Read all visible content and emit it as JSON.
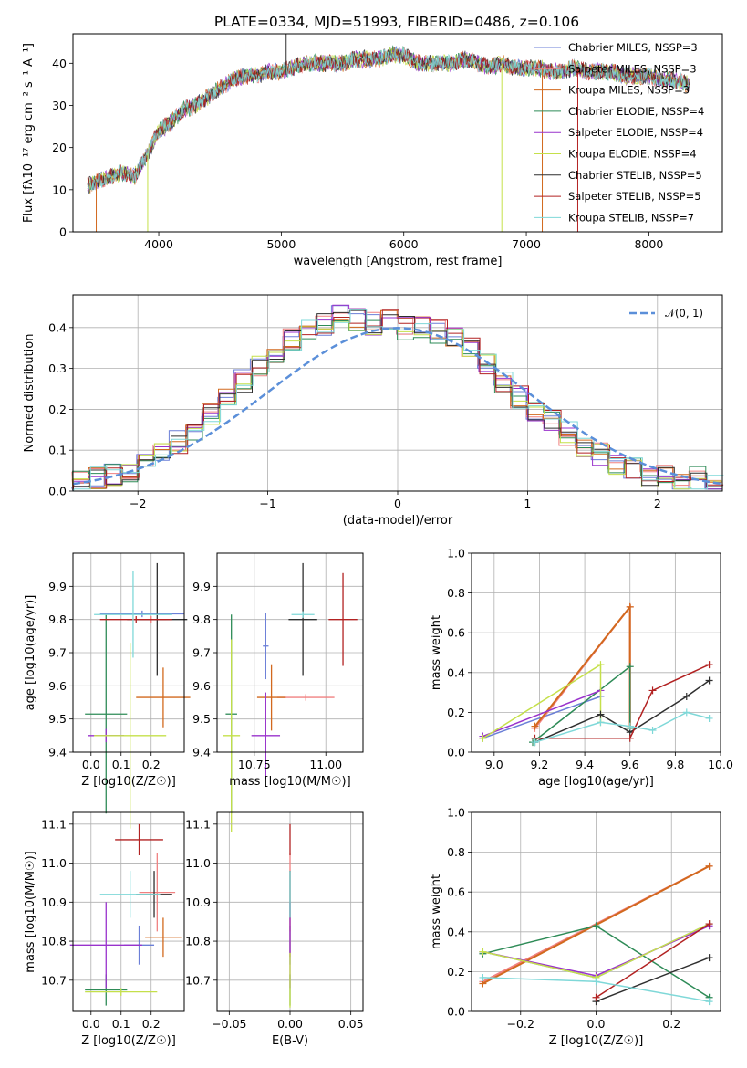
{
  "figure": {
    "title": "PLATE=0334, MJD=51993, FIBERID=0486, z=0.106"
  },
  "colors": {
    "series": [
      "#6b7fd7",
      "#f08080",
      "#d2691e",
      "#2e8b57",
      "#9932cc",
      "#c5e04a",
      "#2f2f2f",
      "#b22222",
      "#7fd8d8"
    ],
    "gaussian": "#5b8fd9",
    "grid": "#b0b0b0"
  },
  "chart_data": [
    {
      "type": "line",
      "title": "PLATE=0334, MJD=51993, FIBERID=0486, z=0.106",
      "xlabel": "wavelength [Angstrom, rest frame]",
      "ylabel": "Flux [fλ10⁻¹⁷ erg cm⁻² s⁻¹ A⁻¹]",
      "xlim": [
        3300,
        8600
      ],
      "ylim": [
        0,
        47
      ],
      "xticks": [
        "4000",
        "5000",
        "6000",
        "7000",
        "8000"
      ],
      "yticks": [
        "0",
        "10",
        "20",
        "30",
        "40"
      ],
      "grid": false,
      "legend": "right",
      "legend_entries": [
        "Chabrier MILES, NSSP=3",
        "Salpeter MILES, NSSP=3",
        "Kroupa MILES, NSSP=3",
        "Chabrier ELODIE, NSSP=4",
        "Salpeter ELODIE, NSSP=4",
        "Kroupa ELODIE, NSSP=4",
        "Chabrier STELIB, NSSP=5",
        "Salpeter STELIB, NSSP=5",
        "Kroupa STELIB, NSSP=7"
      ],
      "spectrum": {
        "x": [
          3420,
          3500,
          3600,
          3700,
          3800,
          3900,
          4000,
          4100,
          4200,
          4300,
          4400,
          4500,
          4600,
          4700,
          4800,
          4900,
          5000,
          5100,
          5200,
          5300,
          5400,
          5500,
          5600,
          5700,
          5800,
          5900,
          6000,
          6100,
          6200,
          6300,
          6400,
          6500,
          6600,
          6700,
          6800,
          6900,
          7000,
          7100,
          7200,
          7300,
          7400,
          7500,
          7600,
          7700,
          7800,
          7900,
          8000,
          8100,
          8200,
          8330
        ],
        "y": [
          11,
          12,
          13,
          14,
          13,
          18,
          24,
          26,
          29,
          30,
          32,
          34,
          36,
          37,
          37,
          38,
          38,
          39,
          40,
          40,
          40,
          40,
          41,
          41,
          41,
          42,
          42,
          40,
          40,
          40,
          40,
          41,
          40,
          39,
          40,
          39,
          39,
          39,
          38,
          38,
          39,
          38,
          38,
          38,
          37,
          37,
          37,
          36,
          36,
          35
        ]
      }
    },
    {
      "type": "line",
      "xlabel": "(data-model)/error",
      "ylabel": "Normed distribution",
      "xlim": [
        -2.5,
        2.5
      ],
      "ylim": [
        0,
        0.48
      ],
      "xticks": [
        "−2",
        "−1",
        "0",
        "1",
        "2"
      ],
      "yticks": [
        "0.0",
        "0.1",
        "0.2",
        "0.3",
        "0.4"
      ],
      "grid": true,
      "legend": "top-right",
      "legend_entries": [
        "𝒩(0, 1)"
      ],
      "series": [
        {
          "bins": [
            -2.5,
            2.5
          ],
          "values": [
            0.02,
            0.03,
            0.04,
            0.05,
            0.08,
            0.09,
            0.12,
            0.15,
            0.19,
            0.23,
            0.27,
            0.31,
            0.34,
            0.37,
            0.39,
            0.41,
            0.43,
            0.42,
            0.41,
            0.42,
            0.4,
            0.4,
            0.39,
            0.37,
            0.35,
            0.31,
            0.27,
            0.23,
            0.2,
            0.17,
            0.14,
            0.11,
            0.09,
            0.07,
            0.06,
            0.04,
            0.04,
            0.03,
            0.03,
            0.02
          ]
        }
      ]
    },
    {
      "type": "scatter",
      "xlabel": "Z [log10(Z/Z☉)]",
      "ylabel": "age  [log10(age/yr)]",
      "xlim": [
        -0.06,
        0.31
      ],
      "ylim": [
        9.4,
        10.0
      ],
      "xticks": [
        "0.0",
        "0.1",
        "0.2"
      ],
      "yticks": [
        "9.4",
        "9.5",
        "9.6",
        "9.7",
        "9.8",
        "9.9"
      ],
      "grid": true,
      "points": [
        {
          "x": 0.17,
          "y": 9.817,
          "xerr": 0.14,
          "yerr": 0.01,
          "series": 0
        },
        {
          "x": 0.2,
          "y": 9.8,
          "xerr": 0.05,
          "yerr": 0.01,
          "series": 1
        },
        {
          "x": 0.24,
          "y": 9.565,
          "xerr": 0.09,
          "yerr": 0.09,
          "series": 2
        },
        {
          "x": 0.05,
          "y": 9.515,
          "xerr": 0.07,
          "yerr": 0.3,
          "series": 3
        },
        {
          "x": 0.05,
          "y": 9.45,
          "xerr": 0.06,
          "yerr": 0.02,
          "series": 4
        },
        {
          "x": 0.13,
          "y": 9.45,
          "xerr": 0.12,
          "yerr": 0.28,
          "series": 5
        },
        {
          "x": 0.22,
          "y": 9.8,
          "xerr": 0.1,
          "yerr": 0.17,
          "series": 6
        },
        {
          "x": 0.15,
          "y": 9.8,
          "xerr": 0.12,
          "yerr": 0.01,
          "series": 7
        },
        {
          "x": 0.14,
          "y": 9.815,
          "xerr": 0.13,
          "yerr": 0.13,
          "series": 8
        }
      ]
    },
    {
      "type": "scatter",
      "xlabel": "mass [log10(M/M☉)]",
      "ylabel": "",
      "xlim": [
        10.62,
        11.13
      ],
      "ylim": [
        9.4,
        10.0
      ],
      "xticks": [
        "10.75",
        "11.00"
      ],
      "yticks": [
        "9.4",
        "9.5",
        "9.6",
        "9.7",
        "9.8",
        "9.9"
      ],
      "grid": true,
      "points": [
        {
          "x": 10.79,
          "y": 9.72,
          "xerr": 0.01,
          "yerr": 0.1,
          "series": 0
        },
        {
          "x": 10.93,
          "y": 9.565,
          "xerr": 0.1,
          "yerr": 0.01,
          "series": 1
        },
        {
          "x": 10.81,
          "y": 9.565,
          "xerr": 0.05,
          "yerr": 0.1,
          "series": 2
        },
        {
          "x": 10.67,
          "y": 9.515,
          "xerr": 0.02,
          "yerr": 0.3,
          "series": 3
        },
        {
          "x": 10.79,
          "y": 9.45,
          "xerr": 0.05,
          "yerr": 0.13,
          "series": 4
        },
        {
          "x": 10.67,
          "y": 9.45,
          "xerr": 0.03,
          "yerr": 0.29,
          "series": 5
        },
        {
          "x": 10.92,
          "y": 9.8,
          "xerr": 0.05,
          "yerr": 0.17,
          "series": 6
        },
        {
          "x": 11.06,
          "y": 9.8,
          "xerr": 0.05,
          "yerr": 0.14,
          "series": 7
        },
        {
          "x": 10.92,
          "y": 9.815,
          "xerr": 0.04,
          "yerr": 0.01,
          "series": 8
        }
      ]
    },
    {
      "type": "line",
      "xlabel": "age  [log10(age/yr)]",
      "ylabel": "mass weight",
      "xlim": [
        8.9,
        10.0
      ],
      "ylim": [
        0.0,
        1.0
      ],
      "xticks": [
        "9.0",
        "9.2",
        "9.4",
        "9.6",
        "9.8",
        "10.0"
      ],
      "yticks": [
        "0.0",
        "0.2",
        "0.4",
        "0.6",
        "0.8",
        "1.0"
      ],
      "grid": true,
      "series": [
        {
          "x": [
            8.95,
            9.47
          ],
          "y": [
            0.07,
            0.28
          ]
        },
        {
          "x": [
            9.18,
            9.6,
            9.6
          ],
          "y": [
            0.12,
            0.73,
            0.13
          ]
        },
        {
          "x": [
            9.18,
            9.6,
            9.6
          ],
          "y": [
            0.13,
            0.73,
            0.12
          ]
        },
        {
          "x": [
            9.17,
            9.6,
            9.6
          ],
          "y": [
            0.05,
            0.43,
            0.12
          ]
        },
        {
          "x": [
            8.95,
            9.47
          ],
          "y": [
            0.08,
            0.31
          ]
        },
        {
          "x": [
            8.95,
            9.47,
            9.47
          ],
          "y": [
            0.07,
            0.44,
            0.15
          ]
        },
        {
          "x": [
            9.18,
            9.47,
            9.6,
            9.85,
            9.95
          ],
          "y": [
            0.05,
            0.19,
            0.1,
            0.28,
            0.36
          ]
        },
        {
          "x": [
            9.18,
            9.6,
            9.7,
            9.95
          ],
          "y": [
            0.07,
            0.07,
            0.31,
            0.44
          ]
        },
        {
          "x": [
            9.18,
            9.47,
            9.6,
            9.7,
            9.85,
            9.95
          ],
          "y": [
            0.05,
            0.15,
            0.13,
            0.11,
            0.2,
            0.17
          ]
        }
      ]
    },
    {
      "type": "scatter",
      "xlabel": "Z [log10(Z/Z☉)]",
      "ylabel": "mass [log10(M/M☉)]",
      "xlim": [
        -0.06,
        0.31
      ],
      "ylim": [
        10.62,
        11.13
      ],
      "xticks": [
        "0.0",
        "0.1",
        "0.2"
      ],
      "yticks": [
        "10.7",
        "10.8",
        "10.9",
        "11.0",
        "11.1"
      ],
      "grid": true,
      "points": [
        {
          "x": 0.16,
          "y": 10.79,
          "xerr": 0.05,
          "yerr": 0.05,
          "series": 0
        },
        {
          "x": 0.22,
          "y": 10.925,
          "xerr": 0.06,
          "yerr": 0.1,
          "series": 1
        },
        {
          "x": 0.24,
          "y": 10.81,
          "xerr": 0.06,
          "yerr": 0.05,
          "series": 2
        },
        {
          "x": 0.05,
          "y": 10.675,
          "xerr": 0.07,
          "yerr": 0.04,
          "series": 3
        },
        {
          "x": 0.05,
          "y": 10.79,
          "xerr": 0.12,
          "yerr": 0.11,
          "series": 4
        },
        {
          "x": 0.1,
          "y": 10.67,
          "xerr": 0.12,
          "yerr": 0.01,
          "series": 5
        },
        {
          "x": 0.21,
          "y": 10.92,
          "xerr": 0.06,
          "yerr": 0.06,
          "series": 6
        },
        {
          "x": 0.16,
          "y": 11.06,
          "xerr": 0.08,
          "yerr": 0.04,
          "series": 7
        },
        {
          "x": 0.13,
          "y": 10.92,
          "xerr": 0.1,
          "yerr": 0.06,
          "series": 8
        }
      ]
    },
    {
      "type": "scatter",
      "xlabel": "E(B-V)",
      "ylabel": "",
      "xlim": [
        -0.06,
        0.06
      ],
      "ylim": [
        10.62,
        11.13
      ],
      "xticks": [
        "−0.05",
        "0.00",
        "0.05"
      ],
      "yticks": [
        "10.7",
        "10.8",
        "10.9",
        "11.0",
        "11.1"
      ],
      "grid": true,
      "points": [
        {
          "x": 0,
          "y": 10.79,
          "xerr": 0,
          "yerr": 0.05,
          "series": 0
        },
        {
          "x": 0,
          "y": 10.925,
          "xerr": 0,
          "yerr": 0.1,
          "series": 1
        },
        {
          "x": 0,
          "y": 10.81,
          "xerr": 0,
          "yerr": 0.05,
          "series": 2
        },
        {
          "x": 0,
          "y": 10.675,
          "xerr": 0,
          "yerr": 0.04,
          "series": 3
        },
        {
          "x": 0,
          "y": 10.79,
          "xerr": 0,
          "yerr": 0.11,
          "series": 4
        },
        {
          "x": 0,
          "y": 10.7,
          "xerr": 0,
          "yerr": 0.07,
          "series": 5
        },
        {
          "x": 0,
          "y": 10.92,
          "xerr": 0,
          "yerr": 0.06,
          "series": 6
        },
        {
          "x": 0,
          "y": 11.06,
          "xerr": 0,
          "yerr": 0.04,
          "series": 7
        },
        {
          "x": 0,
          "y": 10.92,
          "xerr": 0,
          "yerr": 0.06,
          "series": 8
        }
      ]
    },
    {
      "type": "line",
      "xlabel": "Z [log10(Z/Z☉)]",
      "ylabel": "mass weight",
      "xlim": [
        -0.33,
        0.33
      ],
      "ylim": [
        0.0,
        1.0
      ],
      "xticks": [
        "−0.2",
        "0.0",
        "0.2"
      ],
      "yticks": [
        "0.0",
        "0.2",
        "0.4",
        "0.6",
        "0.8",
        "1.0"
      ],
      "grid": true,
      "series": [
        {
          "x": [
            -0.3,
            0.0,
            0.3
          ],
          "y": [
            0.3,
            0.17,
            0.44
          ]
        },
        {
          "x": [
            -0.3,
            0.3
          ],
          "y": [
            0.15,
            0.73
          ]
        },
        {
          "x": [
            -0.3,
            0.3
          ],
          "y": [
            0.14,
            0.73
          ]
        },
        {
          "x": [
            -0.3,
            0.0,
            0.3
          ],
          "y": [
            0.29,
            0.43,
            0.07
          ]
        },
        {
          "x": [
            -0.3,
            0.0,
            0.3
          ],
          "y": [
            0.3,
            0.18,
            0.43
          ]
        },
        {
          "x": [
            -0.3,
            0.0,
            0.3
          ],
          "y": [
            0.3,
            0.17,
            0.44
          ]
        },
        {
          "x": [
            0.0,
            0.3
          ],
          "y": [
            0.05,
            0.27
          ]
        },
        {
          "x": [
            0.0,
            0.3
          ],
          "y": [
            0.07,
            0.44
          ]
        },
        {
          "x": [
            -0.3,
            0.0,
            0.3
          ],
          "y": [
            0.17,
            0.15,
            0.05
          ]
        }
      ]
    }
  ]
}
